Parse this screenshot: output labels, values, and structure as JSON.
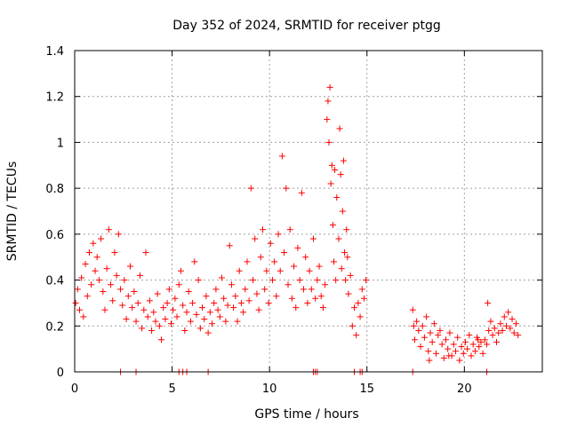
{
  "chart_data": {
    "type": "scatter",
    "title": "Day 352 of 2024, SRMTID for receiver ptgg",
    "xlabel": "GPS time / hours",
    "ylabel": "SRMTID / TECUs",
    "xlim": [
      0,
      24
    ],
    "ylim": [
      0,
      1.4
    ],
    "x_ticks": [
      0,
      5,
      10,
      15,
      20
    ],
    "x_tick_labels": [
      "0",
      "5",
      "10",
      "15",
      "20"
    ],
    "y_ticks": [
      0,
      0.2,
      0.4,
      0.6,
      0.8,
      1.0,
      1.2,
      1.4
    ],
    "y_tick_labels": [
      "0",
      "0.2",
      "0.4",
      "0.6",
      "0.8",
      "1",
      "1.2",
      "1.4"
    ],
    "grid": true,
    "marker": "+",
    "series_color": "#ff0000",
    "series": [
      {
        "name": "SRMTID",
        "points": [
          [
            0.05,
            0.3
          ],
          [
            0.15,
            0.36
          ],
          [
            0.25,
            0.27
          ],
          [
            0.35,
            0.41
          ],
          [
            0.45,
            0.24
          ],
          [
            0.55,
            0.47
          ],
          [
            0.65,
            0.33
          ],
          [
            0.75,
            0.52
          ],
          [
            0.85,
            0.38
          ],
          [
            0.95,
            0.56
          ],
          [
            1.05,
            0.44
          ],
          [
            1.15,
            0.5
          ],
          [
            1.25,
            0.4
          ],
          [
            1.35,
            0.58
          ],
          [
            1.45,
            0.35
          ],
          [
            1.55,
            0.27
          ],
          [
            1.65,
            0.45
          ],
          [
            1.75,
            0.62
          ],
          [
            1.85,
            0.38
          ],
          [
            1.95,
            0.31
          ],
          [
            2.05,
            0.52
          ],
          [
            2.15,
            0.42
          ],
          [
            2.25,
            0.6
          ],
          [
            2.35,
            0.36
          ],
          [
            2.45,
            0.29
          ],
          [
            2.55,
            0.4
          ],
          [
            2.65,
            0.23
          ],
          [
            2.75,
            0.33
          ],
          [
            2.85,
            0.46
          ],
          [
            2.95,
            0.28
          ],
          [
            3.05,
            0.35
          ],
          [
            3.15,
            0.22
          ],
          [
            3.25,
            0.3
          ],
          [
            3.35,
            0.42
          ],
          [
            3.45,
            0.19
          ],
          [
            3.55,
            0.27
          ],
          [
            3.65,
            0.52
          ],
          [
            3.75,
            0.24
          ],
          [
            3.85,
            0.31
          ],
          [
            3.95,
            0.18
          ],
          [
            4.05,
            0.26
          ],
          [
            4.15,
            0.22
          ],
          [
            4.25,
            0.34
          ],
          [
            4.35,
            0.2
          ],
          [
            4.45,
            0.14
          ],
          [
            4.55,
            0.28
          ],
          [
            4.65,
            0.23
          ],
          [
            4.75,
            0.3
          ],
          [
            4.85,
            0.36
          ],
          [
            4.95,
            0.21
          ],
          [
            5.05,
            0.27
          ],
          [
            5.15,
            0.32
          ],
          [
            5.25,
            0.24
          ],
          [
            5.35,
            0.38
          ],
          [
            5.45,
            0.44
          ],
          [
            5.55,
            0.29
          ],
          [
            5.65,
            0.18
          ],
          [
            5.75,
            0.26
          ],
          [
            5.85,
            0.35
          ],
          [
            5.95,
            0.22
          ],
          [
            6.05,
            0.3
          ],
          [
            6.15,
            0.48
          ],
          [
            6.25,
            0.25
          ],
          [
            6.35,
            0.4
          ],
          [
            6.45,
            0.19
          ],
          [
            6.55,
            0.28
          ],
          [
            6.65,
            0.23
          ],
          [
            6.75,
            0.33
          ],
          [
            6.85,
            0.17
          ],
          [
            6.95,
            0.26
          ],
          [
            7.05,
            0.21
          ],
          [
            7.15,
            0.3
          ],
          [
            7.25,
            0.36
          ],
          [
            7.35,
            0.27
          ],
          [
            7.45,
            0.24
          ],
          [
            7.55,
            0.41
          ],
          [
            7.65,
            0.32
          ],
          [
            7.75,
            0.22
          ],
          [
            7.85,
            0.29
          ],
          [
            7.95,
            0.55
          ],
          [
            8.05,
            0.38
          ],
          [
            8.15,
            0.28
          ],
          [
            8.25,
            0.33
          ],
          [
            8.35,
            0.22
          ],
          [
            8.45,
            0.44
          ],
          [
            8.55,
            0.3
          ],
          [
            8.65,
            0.26
          ],
          [
            8.75,
            0.36
          ],
          [
            8.85,
            0.48
          ],
          [
            8.95,
            0.31
          ],
          [
            9.05,
            0.8
          ],
          [
            9.15,
            0.4
          ],
          [
            9.25,
            0.58
          ],
          [
            9.35,
            0.34
          ],
          [
            9.45,
            0.27
          ],
          [
            9.55,
            0.5
          ],
          [
            9.65,
            0.62
          ],
          [
            9.75,
            0.36
          ],
          [
            9.85,
            0.44
          ],
          [
            9.95,
            0.3
          ],
          [
            10.05,
            0.56
          ],
          [
            10.15,
            0.4
          ],
          [
            10.25,
            0.48
          ],
          [
            10.35,
            0.33
          ],
          [
            10.45,
            0.6
          ],
          [
            10.55,
            0.44
          ],
          [
            10.65,
            0.94
          ],
          [
            10.75,
            0.52
          ],
          [
            10.85,
            0.8
          ],
          [
            10.95,
            0.38
          ],
          [
            11.05,
            0.62
          ],
          [
            11.15,
            0.32
          ],
          [
            11.25,
            0.46
          ],
          [
            11.35,
            0.28
          ],
          [
            11.45,
            0.54
          ],
          [
            11.55,
            0.4
          ],
          [
            11.65,
            0.78
          ],
          [
            11.75,
            0.36
          ],
          [
            11.85,
            0.5
          ],
          [
            11.95,
            0.3
          ],
          [
            12.05,
            0.44
          ],
          [
            12.15,
            0.36
          ],
          [
            12.25,
            0.58
          ],
          [
            12.35,
            0.32
          ],
          [
            12.45,
            0.4
          ],
          [
            12.55,
            0.46
          ],
          [
            12.65,
            0.33
          ],
          [
            12.75,
            0.28
          ],
          [
            12.85,
            0.38
          ],
          [
            12.95,
            1.1
          ],
          [
            13.05,
            1.0
          ],
          [
            13.15,
            0.82
          ],
          [
            13.25,
            0.64
          ],
          [
            13.35,
            0.88
          ],
          [
            13.45,
            0.76
          ],
          [
            13.55,
            0.58
          ],
          [
            13.65,
            0.86
          ],
          [
            13.75,
            0.7
          ],
          [
            13.85,
            0.52
          ],
          [
            13.95,
            0.62
          ],
          [
            13.1,
            1.24
          ],
          [
            13.0,
            1.18
          ],
          [
            13.2,
            0.9
          ],
          [
            13.3,
            0.48
          ],
          [
            13.6,
            1.06
          ],
          [
            13.4,
            0.4
          ],
          [
            13.7,
            0.45
          ],
          [
            13.8,
            0.92
          ],
          [
            13.9,
            0.4
          ],
          [
            14.0,
            0.5
          ],
          [
            14.05,
            0.34
          ],
          [
            14.15,
            0.42
          ],
          [
            14.25,
            0.2
          ],
          [
            14.35,
            0.28
          ],
          [
            14.45,
            0.16
          ],
          [
            14.55,
            0.3
          ],
          [
            14.65,
            0.24
          ],
          [
            14.75,
            0.36
          ],
          [
            14.85,
            0.32
          ],
          [
            14.95,
            0.4
          ],
          [
            17.35,
            0.27
          ],
          [
            17.45,
            0.14
          ],
          [
            17.55,
            0.22
          ],
          [
            17.65,
            0.18
          ],
          [
            17.75,
            0.11
          ],
          [
            17.85,
            0.2
          ],
          [
            17.95,
            0.15
          ],
          [
            18.05,
            0.24
          ],
          [
            18.15,
            0.09
          ],
          [
            18.25,
            0.17
          ],
          [
            18.35,
            0.13
          ],
          [
            18.45,
            0.21
          ],
          [
            18.55,
            0.08
          ],
          [
            18.65,
            0.16
          ],
          [
            18.75,
            0.18
          ],
          [
            18.85,
            0.12
          ],
          [
            18.95,
            0.06
          ],
          [
            19.05,
            0.14
          ],
          [
            19.15,
            0.1
          ],
          [
            19.25,
            0.17
          ],
          [
            19.35,
            0.07
          ],
          [
            19.45,
            0.12
          ],
          [
            19.55,
            0.09
          ],
          [
            19.65,
            0.15
          ],
          [
            19.75,
            0.05
          ],
          [
            19.85,
            0.11
          ],
          [
            19.95,
            0.08
          ],
          [
            20.05,
            0.13
          ],
          [
            20.15,
            0.1
          ],
          [
            20.25,
            0.16
          ],
          [
            20.35,
            0.07
          ],
          [
            20.45,
            0.12
          ],
          [
            20.55,
            0.09
          ],
          [
            20.65,
            0.15
          ],
          [
            20.75,
            0.11
          ],
          [
            20.85,
            0.13
          ],
          [
            20.95,
            0.08
          ],
          [
            21.05,
            0.14
          ],
          [
            21.15,
            0.12
          ],
          [
            21.25,
            0.18
          ],
          [
            21.35,
            0.22
          ],
          [
            21.45,
            0.16
          ],
          [
            21.55,
            0.19
          ],
          [
            21.65,
            0.13
          ],
          [
            21.75,
            0.17
          ],
          [
            21.85,
            0.21
          ],
          [
            21.95,
            0.18
          ],
          [
            22.05,
            0.24
          ],
          [
            22.15,
            0.2
          ],
          [
            22.25,
            0.26
          ],
          [
            22.35,
            0.19
          ],
          [
            22.45,
            0.23
          ],
          [
            22.55,
            0.17
          ],
          [
            22.65,
            0.21
          ],
          [
            22.75,
            0.16
          ],
          [
            21.2,
            0.3
          ],
          [
            20.7,
            0.14
          ],
          [
            19.2,
            0.07
          ],
          [
            18.2,
            0.05
          ],
          [
            17.4,
            0.2
          ]
        ],
        "zero_points": [
          2.35,
          3.15,
          5.35,
          5.55,
          5.75,
          6.85,
          12.25,
          12.35,
          12.45,
          14.35,
          14.65,
          14.75,
          17.35,
          21.15
        ]
      }
    ]
  }
}
